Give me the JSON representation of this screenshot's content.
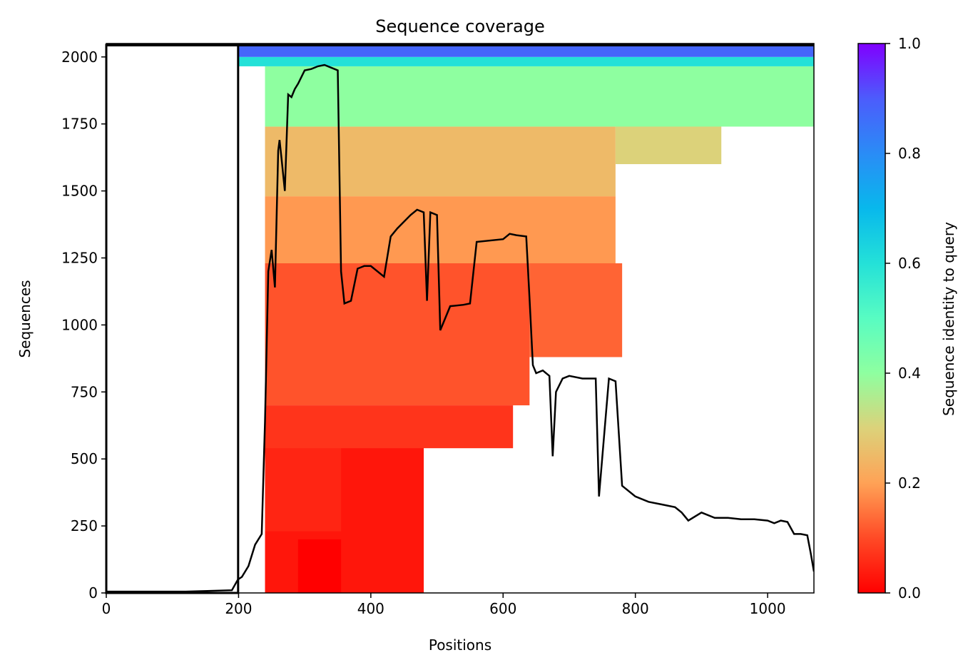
{
  "chart_data": {
    "type": "heatmap",
    "title": "Sequence coverage",
    "xlabel": "Positions",
    "ylabel": "Sequences",
    "xlim": [
      0,
      1070
    ],
    "ylim": [
      0,
      2050
    ],
    "xticks": [
      0,
      200,
      400,
      600,
      800,
      1000
    ],
    "yticks": [
      0,
      250,
      500,
      750,
      1000,
      1250,
      1500,
      1750,
      2000
    ],
    "query_start_marker": 199,
    "colorbar": {
      "label": "Sequence identity to query",
      "colormap": "rainbow_r",
      "range": [
        0,
        1
      ],
      "ticks": [
        "0.0",
        "0.2",
        "0.4",
        "0.6",
        "0.8",
        "1.0"
      ],
      "colors": [
        [
          0.0,
          "#ff0000"
        ],
        [
          0.1,
          "#ff4a26"
        ],
        [
          0.2,
          "#ffa256"
        ],
        [
          0.3,
          "#dcd27a"
        ],
        [
          0.4,
          "#8effa0"
        ],
        [
          0.5,
          "#58fcc2"
        ],
        [
          0.6,
          "#24e1d8"
        ],
        [
          0.7,
          "#08b8ec"
        ],
        [
          0.8,
          "#2a8cf6"
        ],
        [
          0.9,
          "#4c5cfc"
        ],
        [
          1.0,
          "#8000ff"
        ]
      ]
    },
    "identity_bands": [
      {
        "y0": 0,
        "y1": 590,
        "x0": 240,
        "x1": 480,
        "identity": 0.03
      },
      {
        "y0": 0,
        "y1": 200,
        "x0": 290,
        "x1": 355,
        "identity": 0.0
      },
      {
        "y0": 230,
        "y1": 570,
        "x0": 240,
        "x1": 355,
        "identity": 0.05
      },
      {
        "y0": 540,
        "y1": 700,
        "x0": 240,
        "x1": 615,
        "identity": 0.07
      },
      {
        "y0": 700,
        "y1": 1270,
        "x0": 240,
        "x1": 640,
        "identity": 0.11
      },
      {
        "y0": 880,
        "y1": 1230,
        "x0": 640,
        "x1": 780,
        "identity": 0.13
      },
      {
        "y0": 1230,
        "y1": 1480,
        "x0": 240,
        "x1": 770,
        "identity": 0.19
      },
      {
        "y0": 1480,
        "y1": 1740,
        "x0": 240,
        "x1": 770,
        "identity": 0.25
      },
      {
        "y0": 1600,
        "y1": 1750,
        "x0": 770,
        "x1": 930,
        "identity": 0.3
      },
      {
        "y0": 1740,
        "y1": 1965,
        "x0": 240,
        "x1": 1140,
        "identity": 0.4
      },
      {
        "y0": 1965,
        "y1": 2000,
        "x0": 200,
        "x1": 1140,
        "identity": 0.6
      },
      {
        "y0": 2000,
        "y1": 2050,
        "x0": 200,
        "x1": 1140,
        "identity": 0.88
      }
    ],
    "coverage_line": {
      "x": [
        0,
        120,
        190,
        199,
        205,
        215,
        225,
        235,
        240,
        245,
        250,
        255,
        260,
        262,
        265,
        270,
        275,
        280,
        285,
        290,
        300,
        310,
        320,
        330,
        340,
        350,
        355,
        360,
        370,
        380,
        390,
        400,
        420,
        430,
        440,
        460,
        470,
        480,
        485,
        490,
        500,
        505,
        520,
        540,
        550,
        560,
        600,
        610,
        620,
        635,
        640,
        645,
        650,
        660,
        670,
        675,
        680,
        690,
        700,
        720,
        740,
        745,
        760,
        770,
        780,
        800,
        820,
        840,
        860,
        870,
        880,
        900,
        920,
        940,
        960,
        980,
        1000,
        1010,
        1020,
        1030,
        1040,
        1050,
        1060,
        1065,
        1070
      ],
      "y": [
        5,
        5,
        10,
        50,
        60,
        100,
        180,
        220,
        640,
        1200,
        1280,
        1140,
        1650,
        1690,
        1620,
        1500,
        1860,
        1850,
        1880,
        1900,
        1950,
        1955,
        1965,
        1970,
        1960,
        1950,
        1200,
        1080,
        1090,
        1210,
        1220,
        1220,
        1180,
        1330,
        1360,
        1410,
        1430,
        1420,
        1090,
        1420,
        1410,
        980,
        1070,
        1075,
        1080,
        1310,
        1320,
        1340,
        1335,
        1330,
        1100,
        850,
        820,
        830,
        810,
        510,
        750,
        800,
        810,
        800,
        800,
        360,
        800,
        790,
        400,
        360,
        340,
        330,
        320,
        300,
        270,
        300,
        280,
        280,
        275,
        275,
        270,
        260,
        270,
        265,
        220,
        220,
        215,
        150,
        80
      ]
    }
  }
}
